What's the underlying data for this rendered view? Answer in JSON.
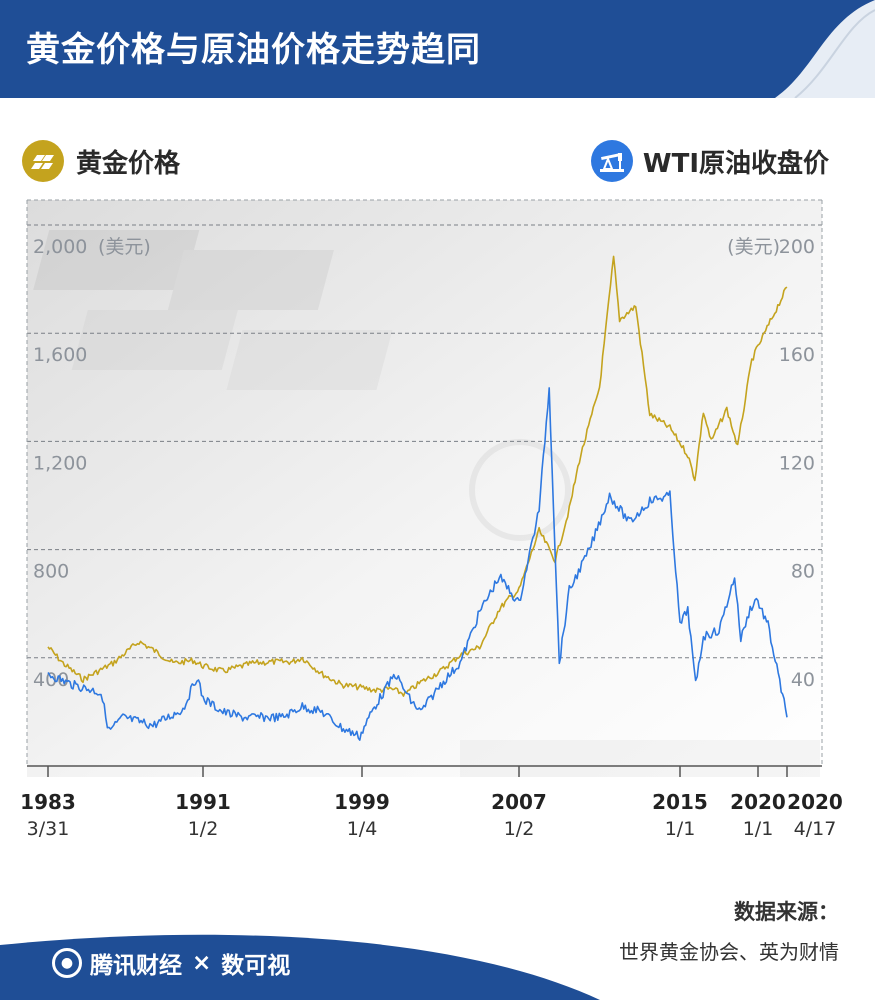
{
  "header": {
    "title": "黄金价格与原油价格走势趋同"
  },
  "legend": {
    "left": "黄金价格",
    "right": "WTI原油收盘价"
  },
  "colors": {
    "gold": "#c4a31e",
    "oil": "#2e78e0",
    "header": "#1f4e96",
    "grid": "#7a7f86"
  },
  "icons": {
    "gold": "gold-bar-icon",
    "oil": "oil-pump-icon"
  },
  "chart_data": {
    "type": "line",
    "title": "黄金价格与原油价格走势趋同",
    "left_axis": {
      "unit": "(美元)",
      "ticks": [
        400,
        800,
        1200,
        1600,
        2000
      ],
      "tick_labels": [
        "400",
        "800",
        "1,200",
        "1,600",
        "2,000"
      ],
      "range": [
        0,
        2000
      ]
    },
    "right_axis": {
      "unit": "(美元)",
      "ticks": [
        40,
        80,
        120,
        160,
        200
      ],
      "range": [
        0,
        200
      ]
    },
    "x_axis": {
      "ticks": [
        {
          "year": "1983",
          "date": "3/31"
        },
        {
          "year": "1991",
          "date": "1/2"
        },
        {
          "year": "1999",
          "date": "1/4"
        },
        {
          "year": "2007",
          "date": "1/2"
        },
        {
          "year": "2015",
          "date": "1/1"
        },
        {
          "year": "2020",
          "date": "1/1"
        },
        {
          "year": "2020",
          "date": "4/17"
        }
      ]
    },
    "grid": "dashed horizontal",
    "series": [
      {
        "name": "黄金价格",
        "axis": "left",
        "color": "#c4a31e",
        "x": [
          1983.25,
          1984.0,
          1985.0,
          1985.5,
          1986.5,
          1987.8,
          1988.5,
          1989.5,
          1990.5,
          1991.0,
          1992.0,
          1993.5,
          1994.5,
          1995.5,
          1996.0,
          1997.0,
          1998.0,
          1999.0,
          1999.7,
          2000.5,
          2001.2,
          2002.0,
          2003.0,
          2004.0,
          2005.0,
          2006.0,
          2006.5,
          2007.0,
          2008.0,
          2008.8,
          2009.5,
          2010.0,
          2011.0,
          2011.7,
          2012.0,
          2012.8,
          2013.5,
          2014.5,
          2015.5,
          2015.95,
          2016.5,
          2017.0,
          2018.0,
          2018.7,
          2019.0,
          2019.6,
          2020.0,
          2020.3
        ],
        "y": [
          440,
          380,
          320,
          340,
          380,
          460,
          430,
          380,
          390,
          370,
          350,
          380,
          385,
          385,
          400,
          340,
          300,
          290,
          280,
          285,
          265,
          310,
          350,
          410,
          440,
          580,
          620,
          650,
          870,
          760,
          950,
          1130,
          1400,
          1880,
          1650,
          1700,
          1300,
          1250,
          1150,
          1060,
          1310,
          1200,
          1320,
          1180,
          1290,
          1500,
          1550,
          1770
        ]
      },
      {
        "name": "WTI原油收盘价",
        "axis": "right",
        "color": "#2e78e0",
        "x": [
          1983.25,
          1984.5,
          1985.5,
          1985.9,
          1986.3,
          1987.0,
          1988.5,
          1989.5,
          1990.0,
          1990.7,
          1991.0,
          1992.0,
          1993.0,
          1994.0,
          1995.0,
          1996.0,
          1997.0,
          1998.0,
          1998.9,
          1999.5,
          2000.0,
          2000.7,
          2001.5,
          2002.0,
          2003.0,
          2004.0,
          2005.0,
          2006.0,
          2007.0,
          2008.0,
          2008.5,
          2009.0,
          2009.5,
          2010.5,
          2011.5,
          2012.5,
          2013.5,
          2014.5,
          2015.0,
          2015.5,
          2016.0,
          2016.5,
          2017.5,
          2018.5,
          2018.9,
          2019.5,
          2019.9,
          2020.1,
          2020.29
        ],
        "y": [
          34,
          30,
          28,
          27,
          13,
          18,
          15,
          19,
          21,
          33,
          25,
          20,
          18,
          18,
          18,
          22,
          20,
          14,
          11,
          20,
          26,
          34,
          24,
          20,
          30,
          38,
          57,
          70,
          60,
          95,
          140,
          38,
          65,
          80,
          100,
          90,
          98,
          100,
          52,
          58,
          30,
          48,
          50,
          70,
          47,
          58,
          62,
          52,
          18
        ]
      }
    ]
  },
  "source": {
    "label": "数据来源：",
    "value": "世界黄金协会、英为财情"
  },
  "footer": {
    "brand": "腾讯财经",
    "times": "×",
    "partner": "数可视"
  }
}
